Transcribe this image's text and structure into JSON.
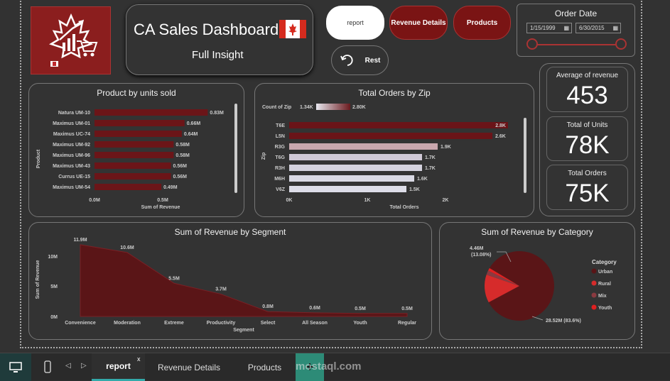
{
  "header": {
    "title": "CA Sales Dashboard",
    "subtitle": "Full Insight",
    "flag_icon": "canada-flag-icon",
    "logo_icon": "maple-cart-logo-icon"
  },
  "nav": {
    "report_label": "report",
    "revenue_details_label": "Revenue Details",
    "products_label": "Products",
    "reset_label": "Rest"
  },
  "order_date": {
    "title": "Order Date",
    "start": "1/15/1999",
    "end": "6/30/2015"
  },
  "kpis": {
    "avg_revenue_label": "Average of revenue",
    "avg_revenue_value": "453",
    "total_units_label": "Total of Units",
    "total_units_value": "78K",
    "total_orders_label": "Total Orders",
    "total_orders_value": "75K"
  },
  "charts": {
    "product_title": "Product by units sold",
    "product_ylabel": "Product",
    "product_xlabel": "Sum of Revenue",
    "product_ticks": [
      "0.0M",
      "0.5M"
    ],
    "zip_title": "Total Orders by Zip",
    "zip_legend_label": "Count of Zip",
    "zip_legend_min": "1.34K",
    "zip_legend_max": "2.80K",
    "zip_ylabel": "Zip",
    "zip_xlabel": "Total Orders",
    "zip_ticks": [
      "0K",
      "1K",
      "2K"
    ],
    "segment_title": "Sum of Revenue by Segment",
    "segment_ylabel": "Sum of Revenue",
    "segment_xlabel": "Segment",
    "segment_ticks": [
      "10M",
      "5M",
      "0M"
    ],
    "category_title": "Sum of Revenue by Category",
    "category_legend_title": "Category",
    "category_label_small": "4.46M\n(13.08%)",
    "category_label_small_1": "4.46M",
    "category_label_small_2": "(13.08%)",
    "category_label_large": "28.52M (83.6%)"
  },
  "chart_data": [
    {
      "type": "bar",
      "title": "Product by units sold",
      "xlabel": "Sum of Revenue",
      "ylabel": "Product",
      "categories": [
        "Natura UM-10",
        "Maximus UM-01",
        "Maximus UC-74",
        "Maximus UM-92",
        "Maximus UM-96",
        "Maximus UM-43",
        "Currus UE-15",
        "Maximus UM-54"
      ],
      "values": [
        0.83,
        0.66,
        0.64,
        0.58,
        0.58,
        0.56,
        0.56,
        0.49
      ],
      "labels": [
        "0.83M",
        "0.66M",
        "0.64M",
        "0.58M",
        "0.58M",
        "0.56M",
        "0.56M",
        "0.49M"
      ],
      "xlim": [
        0,
        0.9
      ]
    },
    {
      "type": "bar",
      "title": "Total Orders by Zip",
      "xlabel": "Total Orders",
      "ylabel": "Zip",
      "categories": [
        "T6E",
        "L5N",
        "R3G",
        "T6G",
        "R3H",
        "M6H",
        "V6Z"
      ],
      "values": [
        2.8,
        2.6,
        1.9,
        1.7,
        1.7,
        1.6,
        1.5
      ],
      "labels": [
        "2.8K",
        "2.6K",
        "1.9K",
        "1.7K",
        "1.7K",
        "1.6K",
        "1.5K"
      ],
      "xlim": [
        0,
        2.8
      ]
    },
    {
      "type": "area",
      "title": "Sum of Revenue by Segment",
      "xlabel": "Segment",
      "ylabel": "Sum of Revenue",
      "categories": [
        "Convenience",
        "Moderation",
        "Extreme",
        "Productivity",
        "Select",
        "All Season",
        "Youth",
        "Regular"
      ],
      "values": [
        11.9,
        10.6,
        5.5,
        3.7,
        0.8,
        0.6,
        0.5,
        0.5
      ],
      "labels": [
        "11.9M",
        "10.6M",
        "5.5M",
        "3.7M",
        "0.8M",
        "0.6M",
        "0.5M",
        "0.5M"
      ],
      "ylim": [
        0,
        12
      ]
    },
    {
      "type": "pie",
      "title": "Sum of Revenue by Category",
      "categories": [
        "Urban",
        "Rural",
        "Mix",
        "Youth"
      ],
      "values": [
        28.52,
        4.46,
        0.7,
        0.44
      ],
      "colors": [
        "#5a1517",
        "#d62b2b",
        "#8a3a40",
        "#e02020"
      ]
    }
  ],
  "bottom": {
    "tabs": [
      "report",
      "Revenue Details",
      "Products"
    ],
    "close_label": "x",
    "add_label": "+",
    "watermark": "mostaql.com"
  }
}
